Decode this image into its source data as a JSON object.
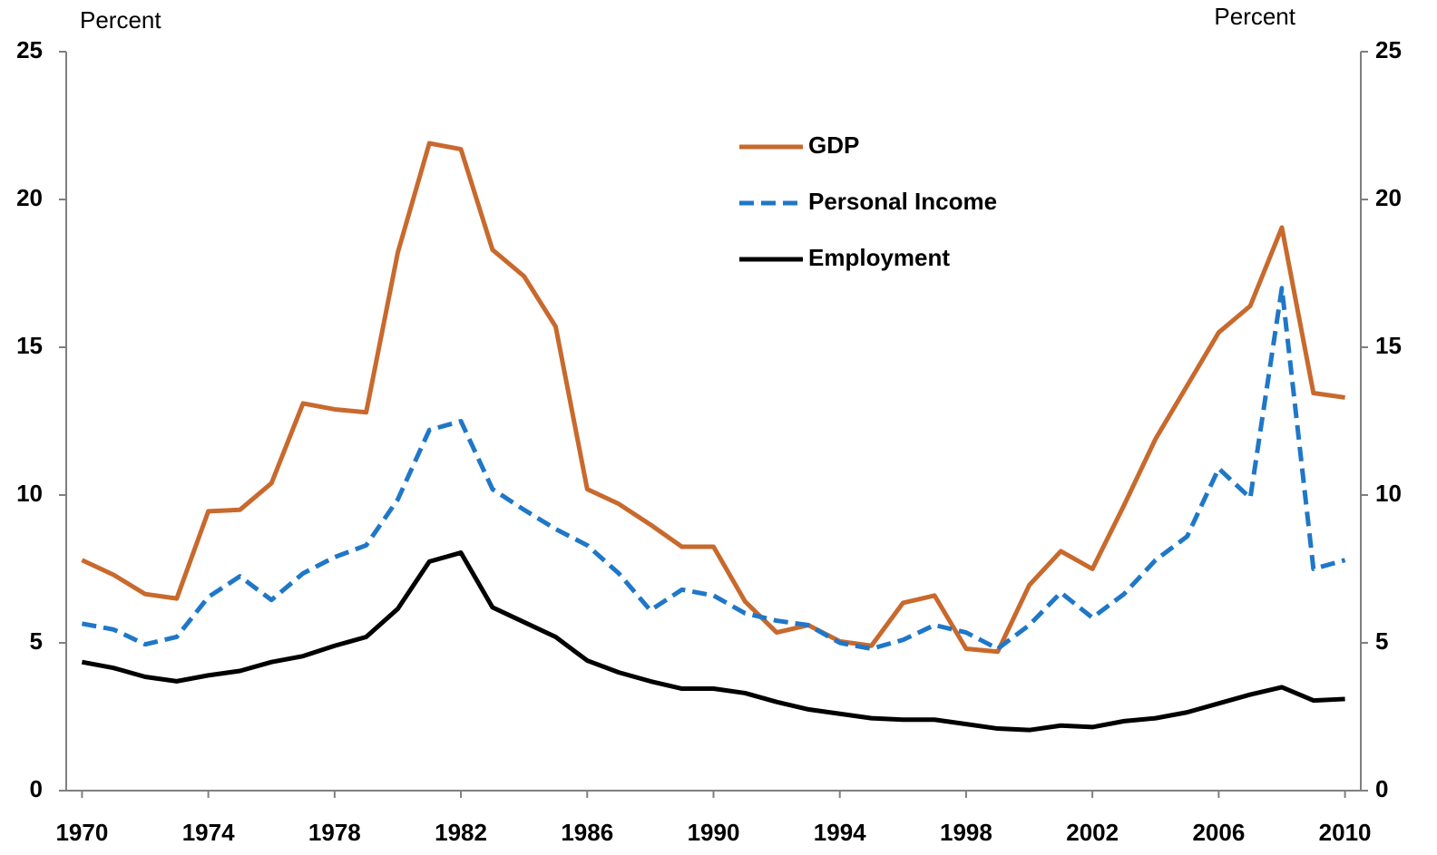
{
  "chart_data": {
    "type": "line",
    "y_label": "Percent",
    "y2_label": "Percent",
    "x": [
      1970,
      1971,
      1972,
      1973,
      1974,
      1975,
      1976,
      1977,
      1978,
      1979,
      1980,
      1981,
      1982,
      1983,
      1984,
      1985,
      1986,
      1987,
      1988,
      1989,
      1990,
      1991,
      1992,
      1993,
      1994,
      1995,
      1996,
      1997,
      1998,
      1999,
      2000,
      2001,
      2002,
      2003,
      2004,
      2005,
      2006,
      2007,
      2008,
      2009,
      2010
    ],
    "xlim": [
      1969.5,
      2010.5
    ],
    "xticks": [
      1970,
      1974,
      1978,
      1982,
      1986,
      1990,
      1994,
      1998,
      2002,
      2006,
      2010
    ],
    "ylim": [
      0,
      25
    ],
    "yticks": [
      0,
      5,
      10,
      15,
      20,
      25
    ],
    "y2lim": [
      0,
      25
    ],
    "y2ticks": [
      0,
      5,
      10,
      15,
      20,
      25
    ],
    "legend": "upper center",
    "series": [
      {
        "name": "GDP",
        "color": "#c8692d",
        "style": "solid",
        "values": [
          7.8,
          7.3,
          6.65,
          6.5,
          9.45,
          9.5,
          10.4,
          13.1,
          12.9,
          12.8,
          18.2,
          21.9,
          21.7,
          18.3,
          17.4,
          15.7,
          10.2,
          9.7,
          9.0,
          8.25,
          8.25,
          6.4,
          5.35,
          5.6,
          5.05,
          4.9,
          6.35,
          6.6,
          4.8,
          4.7,
          6.95,
          8.1,
          7.5,
          9.65,
          11.9,
          13.7,
          15.5,
          16.4,
          19.05,
          13.45,
          13.3
        ]
      },
      {
        "name": "Personal Income",
        "color": "#1f77c8",
        "style": "dashed",
        "values": [
          5.65,
          5.45,
          4.95,
          5.2,
          6.55,
          7.25,
          6.45,
          7.35,
          7.9,
          8.3,
          9.85,
          12.2,
          12.5,
          10.2,
          9.5,
          8.85,
          8.3,
          7.35,
          6.1,
          6.8,
          6.6,
          6.0,
          5.75,
          5.6,
          5.0,
          4.8,
          5.1,
          5.6,
          5.35,
          4.8,
          5.6,
          6.7,
          5.85,
          6.65,
          7.8,
          8.6,
          10.9,
          9.9,
          17.0,
          7.5,
          7.8
        ]
      },
      {
        "name": "Employment",
        "color": "#000000",
        "style": "solid",
        "values": [
          4.35,
          4.15,
          3.85,
          3.7,
          3.9,
          4.05,
          4.35,
          4.55,
          4.9,
          5.2,
          6.15,
          7.75,
          8.05,
          6.2,
          5.7,
          5.2,
          4.4,
          4.0,
          3.7,
          3.45,
          3.45,
          3.3,
          3.0,
          2.75,
          2.6,
          2.45,
          2.4,
          2.4,
          2.25,
          2.1,
          2.05,
          2.2,
          2.15,
          2.35,
          2.45,
          2.65,
          2.95,
          3.25,
          3.5,
          3.05,
          3.1
        ]
      }
    ]
  }
}
